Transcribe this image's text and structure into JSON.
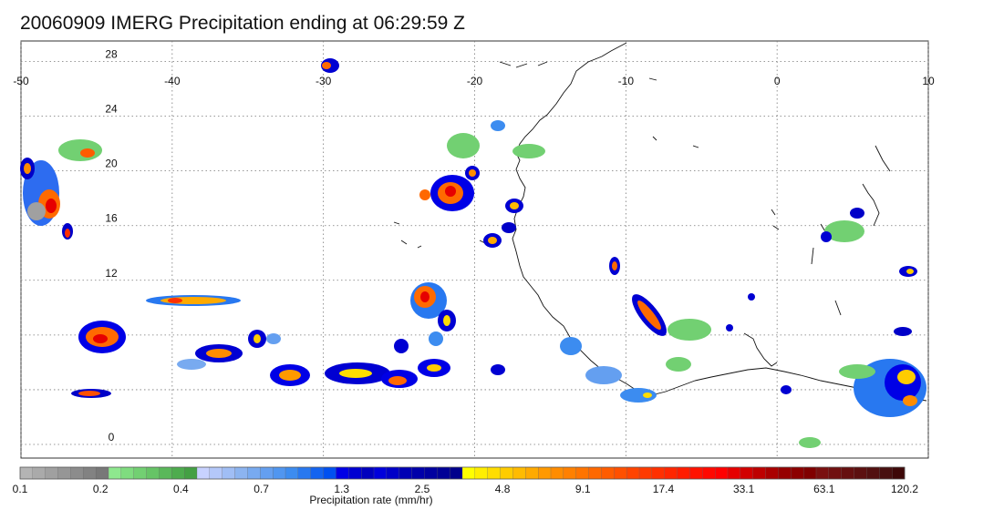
{
  "title": "20060909 IMERG Precipitation ending at 06:29:59 Z",
  "map": {
    "lon_ticks": [
      "-50",
      "-40",
      "-30",
      "-20",
      "-10",
      "0",
      "10"
    ],
    "lat_ticks": [
      "28",
      "24",
      "20",
      "16",
      "12",
      "0"
    ],
    "lon_range": [
      -50,
      10
    ],
    "lat_range": [
      -1,
      29.5
    ],
    "gridlines": true
  },
  "colorbar": {
    "label": "Precipitation rate (mm/hr)",
    "tick_labels": [
      "0.1",
      "0.2",
      "0.4",
      "0.7",
      "1.3",
      "2.5",
      "4.8",
      "9.1",
      "17.4",
      "33.1",
      "63.1",
      "120.2"
    ],
    "colors": [
      "#b4b4b4",
      "#aaaaaa",
      "#a0a0a0",
      "#969696",
      "#8c8c8c",
      "#828282",
      "#787878",
      "#8ee88e",
      "#7fdc7f",
      "#72d072",
      "#66c466",
      "#5ab85a",
      "#4eac4e",
      "#44a044",
      "#c8d2ff",
      "#b4c8fa",
      "#a0bef5",
      "#8cb4f0",
      "#78aaf0",
      "#649ff0",
      "#5096f0",
      "#3c8cf0",
      "#2878f0",
      "#1464f0",
      "#0050f0",
      "#0000e6",
      "#0000d2",
      "#0000be",
      "#0000dc",
      "#0000c8",
      "#0000b4",
      "#0000aa",
      "#0000a0",
      "#000096",
      "#00008c",
      "#ffff00",
      "#ffee00",
      "#ffdd00",
      "#ffcc00",
      "#ffbb00",
      "#ffaa00",
      "#ff9900",
      "#ff8c00",
      "#ff8000",
      "#ff7400",
      "#ff6800",
      "#ff5c00",
      "#ff5000",
      "#ff4400",
      "#ff3a00",
      "#ff3000",
      "#ff2600",
      "#ff1c00",
      "#ff1200",
      "#ff0800",
      "#ff0000",
      "#e60000",
      "#d20000",
      "#be0000",
      "#aa0000",
      "#960000",
      "#8c0000",
      "#800000",
      "#7a1010",
      "#701010",
      "#661010",
      "#5c1010",
      "#521010",
      "#481010",
      "#3e0808"
    ]
  }
}
